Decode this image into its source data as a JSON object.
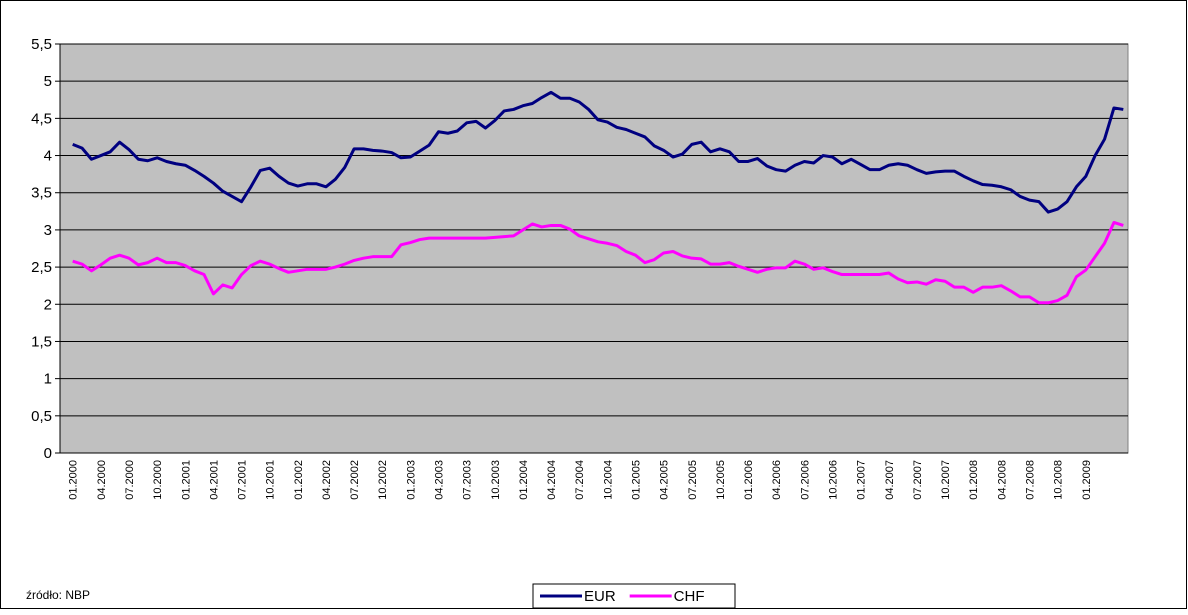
{
  "chart_data": {
    "type": "line",
    "source": "źródło: NBP",
    "categories": [
      "01.2000",
      null,
      null,
      "04.2000",
      null,
      null,
      "07.2000",
      null,
      null,
      "10.2000",
      null,
      null,
      "01.2001",
      null,
      null,
      "04.2001",
      null,
      null,
      "07.2001",
      null,
      null,
      "10.2001",
      null,
      null,
      "01.2002",
      null,
      null,
      "04.2002",
      null,
      null,
      "07.2002",
      null,
      null,
      "10.2002",
      null,
      null,
      "01.2003",
      null,
      null,
      "04.2003",
      null,
      null,
      "07.2003",
      null,
      null,
      "10.2003",
      null,
      null,
      "01.2004",
      null,
      null,
      "04.2004",
      null,
      null,
      "07.2004",
      null,
      null,
      "10.2004",
      null,
      null,
      "01.2005",
      null,
      null,
      "04.2005",
      null,
      null,
      "07.2005",
      null,
      null,
      "10.2005",
      null,
      null,
      "01.2006",
      null,
      null,
      "04.2006",
      null,
      null,
      "07.2006",
      null,
      null,
      "10.2006",
      null,
      null,
      "01.2007",
      null,
      null,
      "04.2007",
      null,
      null,
      "07.2007",
      null,
      null,
      "10.2007",
      null,
      null,
      "01.2008",
      null,
      null,
      "04.2008",
      null,
      null,
      "07.2008",
      null,
      null,
      "10.2008",
      null,
      null,
      "01.2009",
      null,
      null,
      null,
      null
    ],
    "series": [
      {
        "name": "EUR",
        "color": "#000080",
        "values": [
          4.15,
          4.1,
          3.95,
          4.0,
          4.05,
          4.18,
          4.08,
          3.95,
          3.93,
          3.97,
          3.92,
          3.89,
          3.87,
          3.8,
          3.72,
          3.63,
          3.52,
          3.45,
          3.38,
          3.58,
          3.8,
          3.83,
          3.72,
          3.63,
          3.59,
          3.62,
          3.62,
          3.58,
          3.68,
          3.84,
          4.09,
          4.09,
          4.07,
          4.06,
          4.04,
          3.97,
          3.98,
          4.06,
          4.14,
          4.32,
          4.3,
          4.33,
          4.44,
          4.46,
          4.37,
          4.47,
          4.6,
          4.62,
          4.67,
          4.7,
          4.78,
          4.85,
          4.77,
          4.77,
          4.72,
          4.62,
          4.48,
          4.45,
          4.38,
          4.35,
          4.3,
          4.25,
          4.13,
          4.07,
          3.98,
          4.02,
          4.15,
          4.18,
          4.05,
          4.09,
          4.05,
          3.92,
          3.92,
          3.96,
          3.86,
          3.81,
          3.79,
          3.87,
          3.92,
          3.9,
          4.0,
          3.98,
          3.89,
          3.95,
          3.88,
          3.81,
          3.81,
          3.87,
          3.89,
          3.87,
          3.81,
          3.76,
          3.78,
          3.79,
          3.79,
          3.72,
          3.66,
          3.61,
          3.6,
          3.58,
          3.54,
          3.45,
          3.4,
          3.38,
          3.24,
          3.28,
          3.38,
          3.58,
          3.72,
          4.0,
          4.22,
          4.64,
          4.62
        ]
      },
      {
        "name": "CHF",
        "color": "#ff00ff",
        "values": [
          2.58,
          2.54,
          2.45,
          2.53,
          2.62,
          2.66,
          2.62,
          2.53,
          2.56,
          2.62,
          2.56,
          2.56,
          2.52,
          2.45,
          2.4,
          2.14,
          2.26,
          2.22,
          2.4,
          2.52,
          2.58,
          2.54,
          2.48,
          2.43,
          2.45,
          2.47,
          2.47,
          2.47,
          2.5,
          2.54,
          2.59,
          2.62,
          2.64,
          2.64,
          2.64,
          2.8,
          2.83,
          2.87,
          2.89,
          2.89,
          2.89,
          2.89,
          2.89,
          2.89,
          2.89,
          2.9,
          2.91,
          2.92,
          3.0,
          3.08,
          3.04,
          3.06,
          3.06,
          3.01,
          2.92,
          2.88,
          2.84,
          2.82,
          2.79,
          2.71,
          2.66,
          2.56,
          2.6,
          2.69,
          2.71,
          2.65,
          2.62,
          2.61,
          2.54,
          2.54,
          2.56,
          2.51,
          2.47,
          2.43,
          2.47,
          2.49,
          2.49,
          2.58,
          2.54,
          2.47,
          2.49,
          2.44,
          2.4,
          2.4,
          2.4,
          2.4,
          2.4,
          2.42,
          2.34,
          2.29,
          2.3,
          2.27,
          2.33,
          2.31,
          2.23,
          2.23,
          2.16,
          2.23,
          2.23,
          2.25,
          2.18,
          2.1,
          2.1,
          2.02,
          2.02,
          2.05,
          2.12,
          2.37,
          2.46,
          2.64,
          2.82,
          3.1,
          3.06
        ]
      }
    ],
    "ylim": [
      0,
      5.5
    ],
    "yticks": [
      0,
      {
        "value": 0.5,
        "label": "0,5"
      },
      1,
      {
        "value": 1.5,
        "label": "1,5"
      },
      2,
      {
        "value": 2.5,
        "label": "2,5"
      },
      3,
      {
        "value": 3.5,
        "label": "3,5"
      },
      4,
      {
        "value": 4.5,
        "label": "4,5"
      },
      5,
      {
        "value": 5.5,
        "label": "5,5"
      }
    ],
    "grid": true,
    "plot_background": "#c0c0c0",
    "legend": "bottom"
  }
}
